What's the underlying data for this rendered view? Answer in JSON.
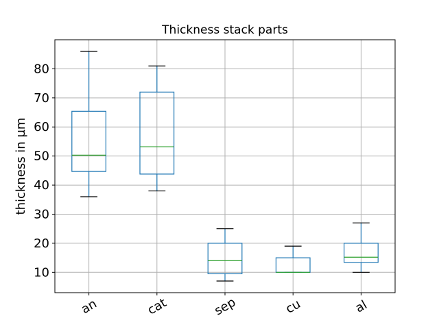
{
  "chart_data": {
    "type": "box",
    "title": "Thickness stack parts",
    "xlabel": "",
    "ylabel": "thickness in µm",
    "ylim": [
      3,
      90
    ],
    "yticks": [
      10,
      20,
      30,
      40,
      50,
      60,
      70,
      80
    ],
    "grid": true,
    "categories": [
      "an",
      "cat",
      "sep",
      "cu",
      "al"
    ],
    "boxes": [
      {
        "category": "an",
        "whisker_low": 36,
        "q1": 44.7,
        "median": 50.3,
        "q3": 65.4,
        "whisker_high": 86
      },
      {
        "category": "cat",
        "whisker_low": 38,
        "q1": 43.8,
        "median": 53.2,
        "q3": 72.0,
        "whisker_high": 81
      },
      {
        "category": "sep",
        "whisker_low": 7,
        "q1": 9.5,
        "median": 14.0,
        "q3": 20.0,
        "whisker_high": 25
      },
      {
        "category": "cu",
        "whisker_low": 10,
        "q1": 10.0,
        "median": 10.0,
        "q3": 15.0,
        "whisker_high": 19
      },
      {
        "category": "al",
        "whisker_low": 10,
        "q1": 13.4,
        "median": 15.2,
        "q3": 20.0,
        "whisker_high": 27
      }
    ],
    "colors": {
      "box": "#1f77b4",
      "median": "#2ca02c",
      "whisker": "#1f77b4",
      "cap": "#000000",
      "grid": "#b0b0b0"
    }
  }
}
